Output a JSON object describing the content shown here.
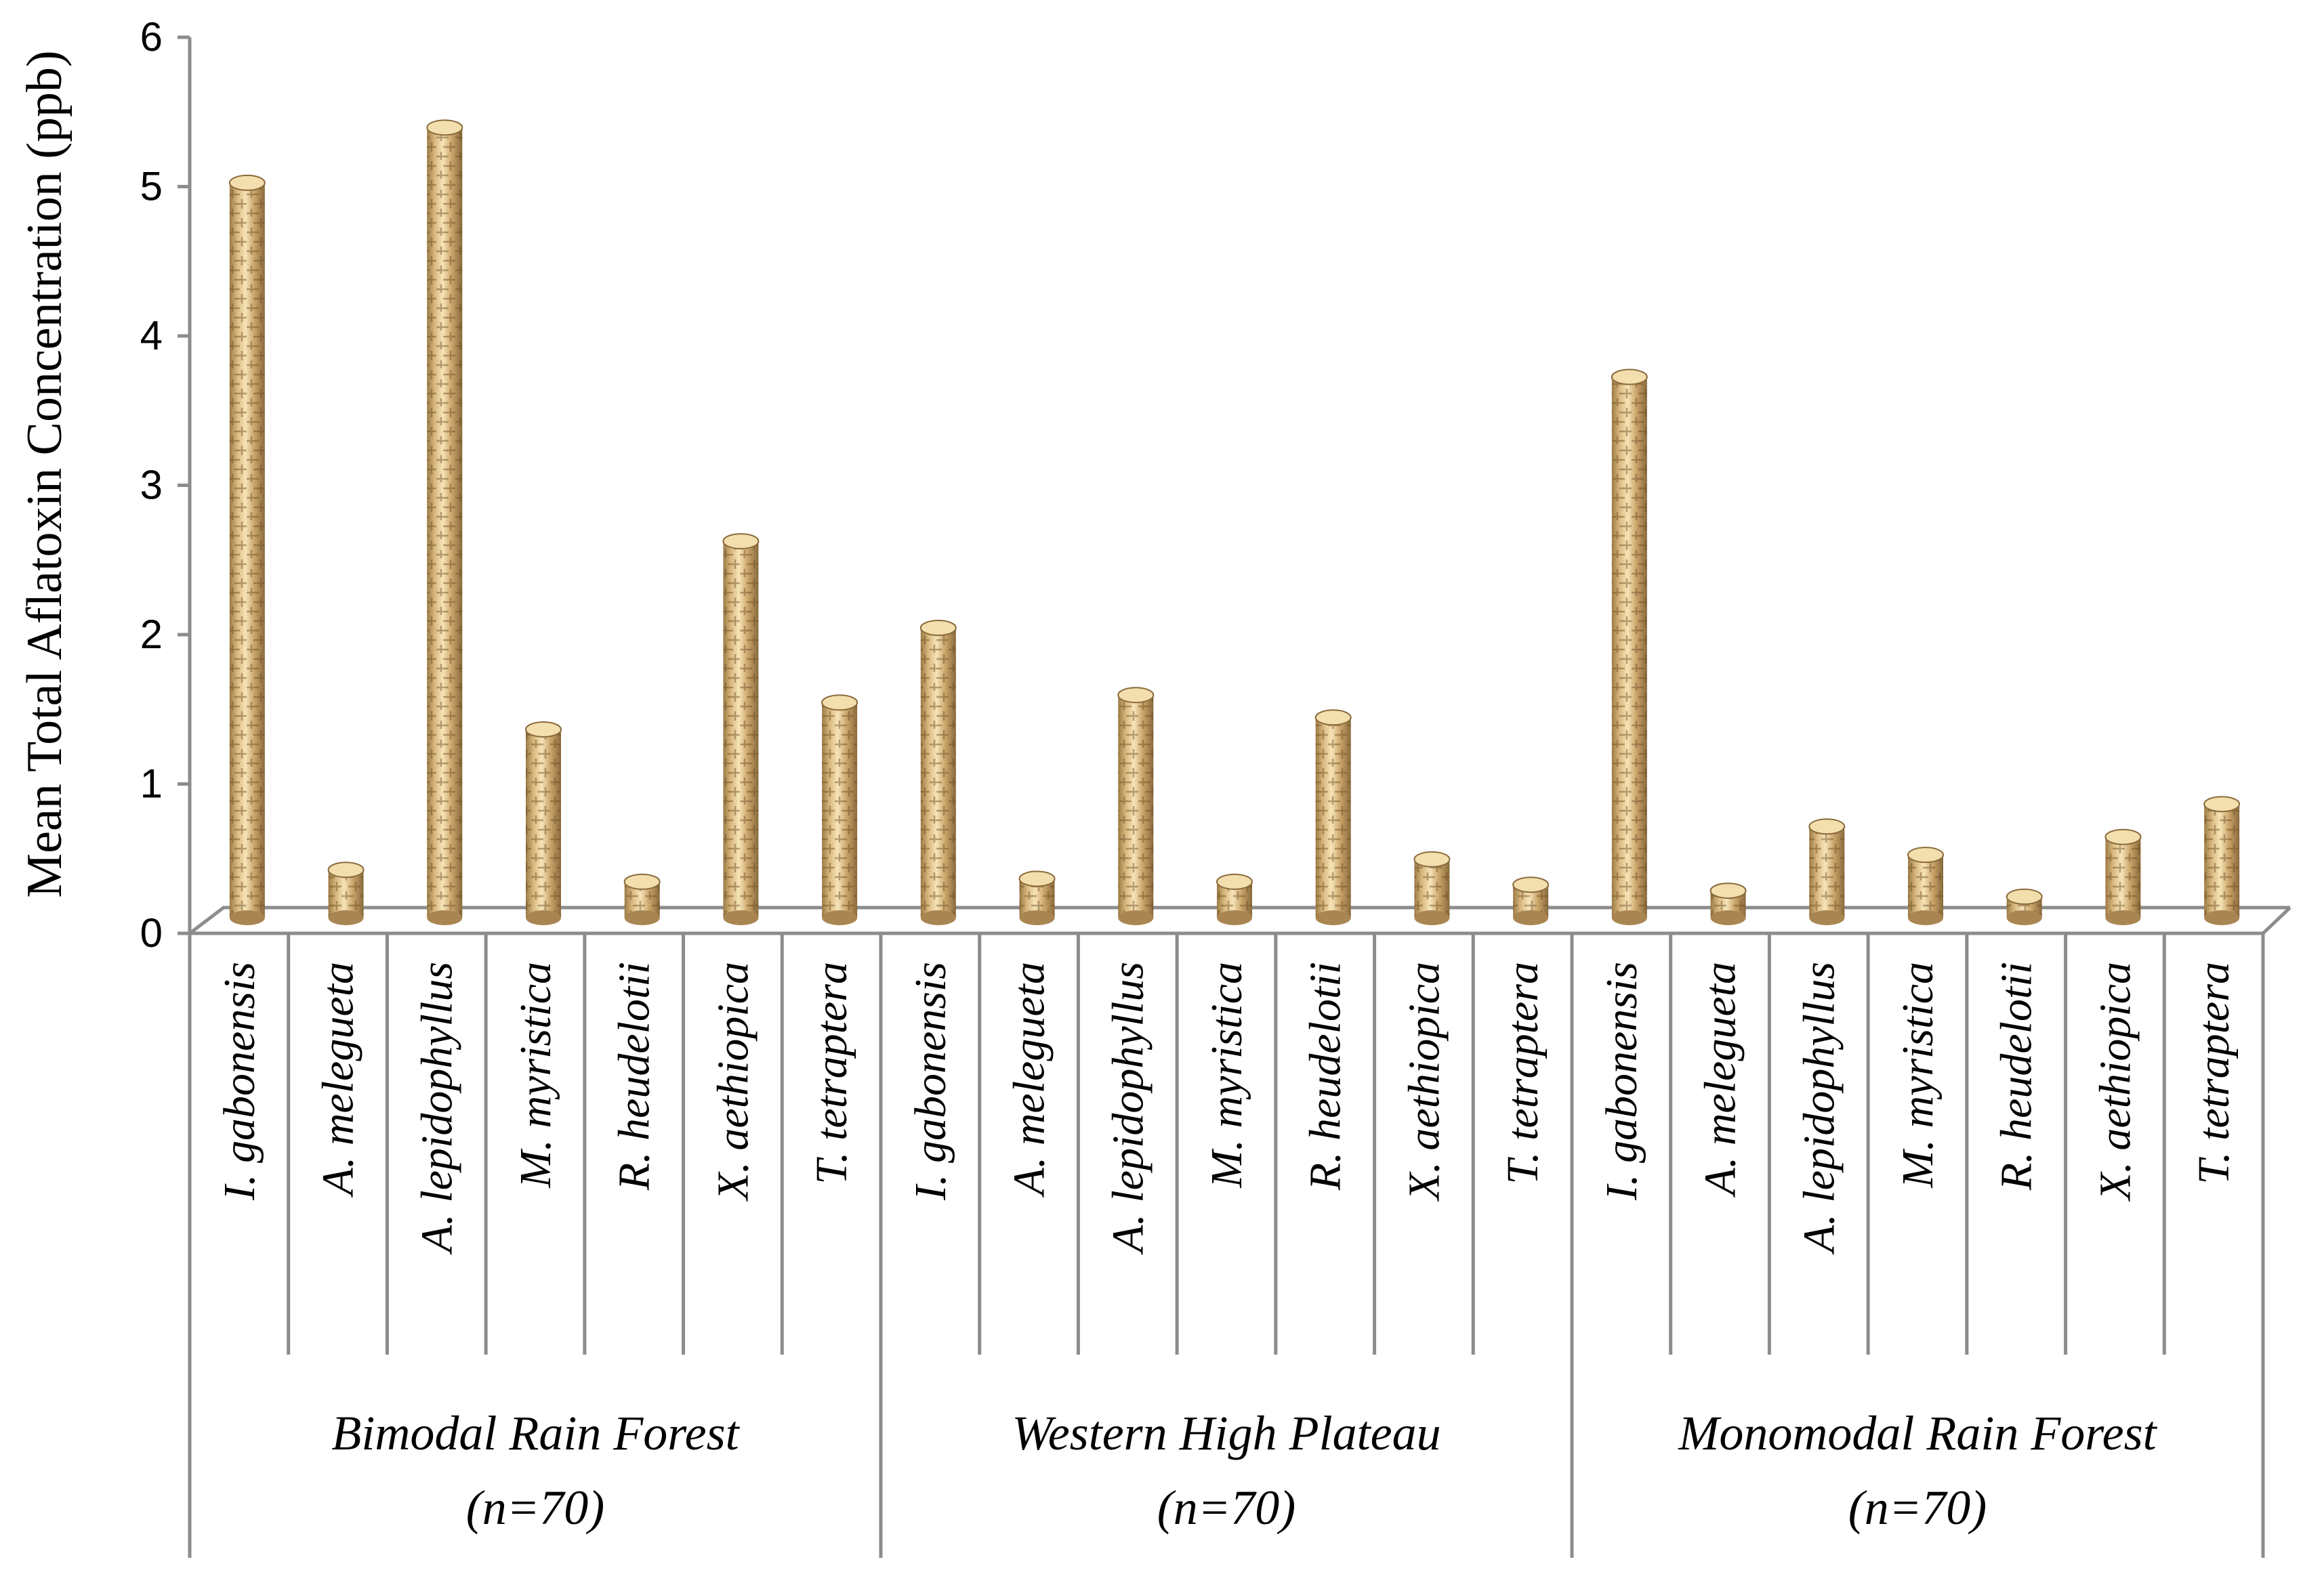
{
  "chart_data": {
    "type": "bar",
    "title": "",
    "ylabel": "Mean Total Aflatoxin Concentration (ppb)",
    "xlabel": "",
    "ylim": [
      0,
      6
    ],
    "yticks": [
      "0",
      "1",
      "2",
      "3",
      "4",
      "5",
      "6"
    ],
    "grid": false,
    "bar_color": "#c9a66b",
    "groups": [
      {
        "label": "Bimodal Rain Forest",
        "sublabel": "(n=70)",
        "categories": [
          "I. gabonensis",
          "A. melegueta",
          "A. lepidophyllus",
          "M. myristica",
          "R. heudelotii",
          "X. aethiopica",
          "T. tetraptera"
        ],
        "values": [
          4.98,
          0.38,
          5.35,
          1.32,
          0.3,
          2.58,
          1.5
        ]
      },
      {
        "label": "Western High Plateau",
        "sublabel": "(n=70)",
        "categories": [
          "I. gabonensis",
          "A. melegueta",
          "A. lepidophyllus",
          "M. myristica",
          "R. heudelotii",
          "X. aethiopica",
          "T. tetraptera"
        ],
        "values": [
          2.0,
          0.32,
          1.55,
          0.3,
          1.4,
          0.45,
          0.28
        ]
      },
      {
        "label": "Monomodal Rain Forest",
        "sublabel": "(n=70)",
        "categories": [
          "I. gabonensis",
          "A. melegueta",
          "A. lepidophyllus",
          "M. myristica",
          "R. heudelotii",
          "X. aethiopica",
          "T. tetraptera"
        ],
        "values": [
          3.68,
          0.24,
          0.67,
          0.48,
          0.2,
          0.6,
          0.82
        ]
      }
    ]
  }
}
